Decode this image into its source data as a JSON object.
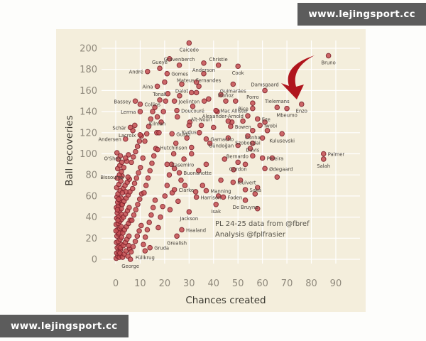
{
  "watermarks": {
    "top": "www.lejingsport.cc",
    "bottom": "www.lejingsport.cc"
  },
  "colors": {
    "panel_bg": "#f4eedc",
    "grid": "#ffffff",
    "point_fill": "#c44d52",
    "point_stroke": "#7e232c",
    "tick_color": "#8f897c",
    "axis_title_color": "#3c3a31",
    "player_label_color": "#433e38",
    "annotation_color": "#57544b",
    "arrow_color": "#b0151d",
    "watermark_bg": "#5c5c5c",
    "watermark_text": "#ffffff"
  },
  "chart_data": {
    "type": "scatter",
    "title": "",
    "xlabel": "Chances created",
    "ylabel": "Ball recoveries",
    "x_ticks": [
      0,
      10,
      20,
      30,
      40,
      50,
      60,
      70,
      80,
      90
    ],
    "y_ticks": [
      0,
      20,
      40,
      60,
      80,
      100,
      120,
      140,
      160,
      180,
      200
    ],
    "xlim": [
      -5,
      97
    ],
    "ylim": [
      -10,
      212
    ],
    "grid": true,
    "legend": false,
    "annotation_lines": [
      "PL 24-25 data from @fbref",
      "Analysis @fplfrasier"
    ],
    "arrow_annotation": {
      "points_at": "Enzo",
      "shape": "curved-swoosh-down"
    },
    "labeled_points": [
      {
        "name": "Caicedo",
        "x": 30,
        "y": 205,
        "side": "below"
      },
      {
        "name": "Bruno",
        "x": 87,
        "y": 193,
        "side": "below"
      },
      {
        "name": "Gravenberch",
        "x": 26,
        "y": 184,
        "side": "above"
      },
      {
        "name": "Christie",
        "x": 42,
        "y": 184,
        "side": "above"
      },
      {
        "name": "Gueye",
        "x": 18,
        "y": 181,
        "side": "above"
      },
      {
        "name": "Anderson",
        "x": 36,
        "y": 186,
        "side": "below"
      },
      {
        "name": "Cook",
        "x": 50,
        "y": 183,
        "side": "below"
      },
      {
        "name": "André",
        "x": 13,
        "y": 178,
        "side": "left"
      },
      {
        "name": "Gomes",
        "x": 21,
        "y": 176,
        "side": "right"
      },
      {
        "name": "Mateus Fernandes",
        "x": 34,
        "y": 164,
        "side": "above"
      },
      {
        "name": "Aina",
        "x": 17,
        "y": 164,
        "side": "left"
      },
      {
        "name": "Dalot",
        "x": 27,
        "y": 166,
        "side": "below"
      },
      {
        "name": "Guimarães",
        "x": 48,
        "y": 166,
        "side": "below"
      },
      {
        "name": "Tonali",
        "x": 18,
        "y": 151,
        "side": "above"
      },
      {
        "name": "Bassey",
        "x": 8,
        "y": 150,
        "side": "left"
      },
      {
        "name": "Collins",
        "x": 10,
        "y": 147,
        "side": "right"
      },
      {
        "name": "Muñoz",
        "x": 45,
        "y": 150,
        "side": "above"
      },
      {
        "name": "Joelinton",
        "x": 24,
        "y": 150,
        "side": "right"
      },
      {
        "name": "Porro",
        "x": 56,
        "y": 148,
        "side": "above"
      },
      {
        "name": "Damsgaard",
        "x": 61,
        "y": 160,
        "side": "above"
      },
      {
        "name": "Rice",
        "x": 56,
        "y": 143,
        "side": "left"
      },
      {
        "name": "Tielemans",
        "x": 66,
        "y": 144,
        "side": "above"
      },
      {
        "name": "Enzo",
        "x": 76,
        "y": 147,
        "side": "below"
      },
      {
        "name": "Lerma",
        "x": 10,
        "y": 140,
        "side": "left"
      },
      {
        "name": "Doucouré",
        "x": 25,
        "y": 141,
        "side": "right"
      },
      {
        "name": "Mac Allister",
        "x": 41,
        "y": 141,
        "side": "right"
      },
      {
        "name": "Alexander-Arnold",
        "x": 54,
        "y": 136,
        "side": "left"
      },
      {
        "name": "Eze",
        "x": 58,
        "y": 133,
        "side": "right"
      },
      {
        "name": "Mbeumo",
        "x": 70,
        "y": 143,
        "side": "below"
      },
      {
        "name": "Kilman",
        "x": 17,
        "y": 135,
        "side": "below"
      },
      {
        "name": "Aït-Nouri",
        "x": 35,
        "y": 127,
        "side": "above"
      },
      {
        "name": "Bowen",
        "x": 47,
        "y": 126,
        "side": "right"
      },
      {
        "name": "Schär",
        "x": 6,
        "y": 125,
        "side": "left"
      },
      {
        "name": "Kudus",
        "x": 30,
        "y": 127,
        "side": "below"
      },
      {
        "name": "Iwobi",
        "x": 59,
        "y": 127,
        "side": "right"
      },
      {
        "name": "Lacroix",
        "x": 10,
        "y": 118,
        "side": "left"
      },
      {
        "name": "Gusto",
        "x": 23,
        "y": 119,
        "side": "right"
      },
      {
        "name": "Garnacho",
        "x": 37,
        "y": 114,
        "side": "right"
      },
      {
        "name": "Andersen",
        "x": 4,
        "y": 114,
        "side": "left"
      },
      {
        "name": "Cunha",
        "x": 56,
        "y": 122,
        "side": "below"
      },
      {
        "name": "Szoboszlai",
        "x": 54,
        "y": 117,
        "side": "below"
      },
      {
        "name": "Kulusevski",
        "x": 68,
        "y": 119,
        "side": "below"
      },
      {
        "name": "Hutchinson",
        "x": 31,
        "y": 106,
        "side": "left"
      },
      {
        "name": "Gündoğan",
        "x": 50,
        "y": 108,
        "side": "left"
      },
      {
        "name": "Davis",
        "x": 56,
        "y": 110,
        "side": "below"
      },
      {
        "name": "Bernardo",
        "x": 56,
        "y": 98,
        "side": "left"
      },
      {
        "name": "Pereira",
        "x": 60,
        "y": 96,
        "side": "right"
      },
      {
        "name": "O'Shea",
        "x": 4,
        "y": 96,
        "side": "left"
      },
      {
        "name": "Casemiro",
        "x": 21,
        "y": 90,
        "side": "right"
      },
      {
        "name": "Buonanotte",
        "x": 26,
        "y": 82,
        "side": "right"
      },
      {
        "name": "Bissouma",
        "x": 5,
        "y": 78,
        "side": "left"
      },
      {
        "name": "Gordon",
        "x": 50,
        "y": 92,
        "side": "below"
      },
      {
        "name": "Ødegaard",
        "x": 61,
        "y": 86,
        "side": "right"
      },
      {
        "name": "Palmer",
        "x": 85,
        "y": 100,
        "side": "right"
      },
      {
        "name": "Salah",
        "x": 85,
        "y": 95,
        "side": "below"
      },
      {
        "name": "Kluivert",
        "x": 48,
        "y": 73,
        "side": "right"
      },
      {
        "name": "Saka",
        "x": 53,
        "y": 66,
        "side": "right"
      },
      {
        "name": "Clarke",
        "x": 24,
        "y": 66,
        "side": "right"
      },
      {
        "name": "Manning",
        "x": 37,
        "y": 65,
        "side": "right"
      },
      {
        "name": "Harrison",
        "x": 33,
        "y": 59,
        "side": "right"
      },
      {
        "name": "Foden",
        "x": 44,
        "y": 59,
        "side": "right"
      },
      {
        "name": "Isak",
        "x": 41,
        "y": 52,
        "side": "below"
      },
      {
        "name": "De Bruyne",
        "x": 53,
        "y": 56,
        "side": "below"
      },
      {
        "name": "Jackson",
        "x": 30,
        "y": 45,
        "side": "below"
      },
      {
        "name": "Haaland",
        "x": 27,
        "y": 28,
        "side": "right"
      },
      {
        "name": "Grealish",
        "x": 25,
        "y": 22,
        "side": "below"
      },
      {
        "name": "Gruda",
        "x": 14,
        "y": 11,
        "side": "right"
      },
      {
        "name": "Füllkrug",
        "x": 12,
        "y": 8,
        "side": "below"
      },
      {
        "name": "George",
        "x": 6,
        "y": 0,
        "side": "below"
      }
    ],
    "background_points": [
      [
        0.2,
        1
      ],
      [
        0.8,
        3
      ],
      [
        1.5,
        2
      ],
      [
        2.2,
        4
      ],
      [
        0.4,
        6
      ],
      [
        1.1,
        7
      ],
      [
        1.9,
        9
      ],
      [
        0.6,
        11
      ],
      [
        1.4,
        12
      ],
      [
        2.3,
        14
      ],
      [
        0.3,
        16
      ],
      [
        1.0,
        17
      ],
      [
        1.8,
        19
      ],
      [
        2.4,
        21
      ],
      [
        0.5,
        22
      ],
      [
        1.2,
        24
      ],
      [
        2.0,
        26
      ],
      [
        0.7,
        28
      ],
      [
        1.6,
        29
      ],
      [
        2.2,
        31
      ],
      [
        0.2,
        33
      ],
      [
        1.0,
        34
      ],
      [
        1.7,
        36
      ],
      [
        2.4,
        38
      ],
      [
        0.4,
        39
      ],
      [
        1.3,
        41
      ],
      [
        2.1,
        43
      ],
      [
        0.6,
        44
      ],
      [
        1.5,
        46
      ],
      [
        2.3,
        48
      ],
      [
        0.3,
        49
      ],
      [
        1.1,
        51
      ],
      [
        1.9,
        53
      ],
      [
        0.8,
        54
      ],
      [
        1.6,
        56
      ],
      [
        2.2,
        58
      ],
      [
        0.5,
        59
      ],
      [
        1.3,
        25
      ],
      [
        0.9,
        37
      ],
      [
        2.0,
        11
      ],
      [
        0.1,
        27
      ],
      [
        1.7,
        6
      ],
      [
        2.4,
        52
      ],
      [
        0.7,
        47
      ],
      [
        1.2,
        57
      ],
      [
        2.8,
        2
      ],
      [
        3.5,
        5
      ],
      [
        4.2,
        8
      ],
      [
        5.0,
        3
      ],
      [
        5.7,
        10
      ],
      [
        3.1,
        13
      ],
      [
        3.9,
        16
      ],
      [
        4.6,
        19
      ],
      [
        5.4,
        22
      ],
      [
        2.9,
        25
      ],
      [
        3.6,
        28
      ],
      [
        4.4,
        31
      ],
      [
        5.2,
        34
      ],
      [
        5.9,
        37
      ],
      [
        3.2,
        40
      ],
      [
        4.0,
        43
      ],
      [
        4.8,
        46
      ],
      [
        5.5,
        49
      ],
      [
        2.7,
        52
      ],
      [
        3.4,
        55
      ],
      [
        4.3,
        58
      ],
      [
        5.1,
        61
      ],
      [
        5.8,
        64
      ],
      [
        3.0,
        67
      ],
      [
        3.8,
        70
      ],
      [
        4.7,
        73
      ],
      [
        5.6,
        76
      ],
      [
        2.6,
        79
      ],
      [
        4.1,
        64
      ],
      [
        5.3,
        13
      ],
      [
        0.9,
        62
      ],
      [
        1.8,
        65
      ],
      [
        0.4,
        68
      ],
      [
        1.3,
        71
      ],
      [
        2.1,
        74
      ],
      [
        0.6,
        77
      ],
      [
        1.5,
        80
      ],
      [
        2.3,
        83
      ],
      [
        0.8,
        86
      ],
      [
        1.7,
        89
      ],
      [
        2.5,
        92
      ],
      [
        1.0,
        95
      ],
      [
        1.9,
        98
      ],
      [
        0.5,
        101
      ],
      [
        2.7,
        63
      ],
      [
        3.3,
        87
      ],
      [
        4.5,
        93
      ],
      [
        5.2,
        99
      ],
      [
        6.3,
        7
      ],
      [
        7.1,
        12
      ],
      [
        8.0,
        17
      ],
      [
        8.8,
        22
      ],
      [
        9.6,
        27
      ],
      [
        10.4,
        32
      ],
      [
        6.6,
        37
      ],
      [
        7.4,
        42
      ],
      [
        8.2,
        47
      ],
      [
        9.0,
        52
      ],
      [
        9.8,
        57
      ],
      [
        10.6,
        62
      ],
      [
        6.9,
        67
      ],
      [
        7.7,
        72
      ],
      [
        8.5,
        77
      ],
      [
        9.3,
        82
      ],
      [
        10.1,
        87
      ],
      [
        6.4,
        92
      ],
      [
        7.2,
        97
      ],
      [
        8.1,
        102
      ],
      [
        8.9,
        107
      ],
      [
        9.7,
        112
      ],
      [
        10.5,
        117
      ],
      [
        7.0,
        122
      ],
      [
        7.8,
        127
      ],
      [
        11.3,
        14
      ],
      [
        12.1,
        21
      ],
      [
        12.9,
        28
      ],
      [
        13.7,
        35
      ],
      [
        14.5,
        42
      ],
      [
        15.3,
        49
      ],
      [
        16.1,
        56
      ],
      [
        11.6,
        63
      ],
      [
        12.4,
        70
      ],
      [
        13.2,
        77
      ],
      [
        14.0,
        84
      ],
      [
        14.8,
        91
      ],
      [
        15.6,
        98
      ],
      [
        16.4,
        105
      ],
      [
        11.9,
        112
      ],
      [
        12.7,
        119
      ],
      [
        13.5,
        126
      ],
      [
        14.3,
        133
      ],
      [
        15.1,
        140
      ],
      [
        16.0,
        144
      ],
      [
        16.8,
        120
      ],
      [
        11.1,
        96
      ],
      [
        17.4,
        30
      ],
      [
        18.3,
        40
      ],
      [
        19.2,
        50
      ],
      [
        20.1,
        60
      ],
      [
        21.0,
        70
      ],
      [
        21.9,
        80
      ],
      [
        22.8,
        90
      ],
      [
        23.7,
        100
      ],
      [
        24.6,
        110
      ],
      [
        17.7,
        120
      ],
      [
        18.6,
        130
      ],
      [
        19.5,
        140
      ],
      [
        20.4,
        150
      ],
      [
        21.3,
        157
      ],
      [
        22.2,
        47
      ],
      [
        23.1,
        63
      ],
      [
        24.0,
        86
      ],
      [
        17.1,
        104
      ],
      [
        25.5,
        55
      ],
      [
        26.7,
        75
      ],
      [
        27.9,
        95
      ],
      [
        29.1,
        115
      ],
      [
        30.3,
        130
      ],
      [
        31.5,
        145
      ],
      [
        32.7,
        64
      ],
      [
        33.9,
        84
      ],
      [
        25.2,
        135
      ],
      [
        28.3,
        70
      ],
      [
        31.0,
        100
      ],
      [
        34.2,
        120
      ],
      [
        26.1,
        155
      ],
      [
        33.0,
        158
      ],
      [
        35.5,
        70
      ],
      [
        37.0,
        90
      ],
      [
        38.5,
        110
      ],
      [
        40.0,
        125
      ],
      [
        41.5,
        140
      ],
      [
        43.0,
        75
      ],
      [
        44.5,
        95
      ],
      [
        46.0,
        115
      ],
      [
        47.5,
        130
      ],
      [
        49.0,
        150
      ],
      [
        36.2,
        150
      ],
      [
        42.0,
        60
      ],
      [
        48.2,
        85
      ],
      [
        51,
        75
      ],
      [
        53,
        90
      ],
      [
        55,
        105
      ],
      [
        58,
        68
      ],
      [
        60,
        115
      ],
      [
        61,
        130
      ],
      [
        22,
        190
      ],
      [
        20,
        168
      ],
      [
        33,
        168
      ],
      [
        36,
        176
      ],
      [
        31,
        158
      ],
      [
        43,
        156
      ],
      [
        38,
        152
      ],
      [
        52,
        131
      ],
      [
        46,
        131
      ],
      [
        62,
        122
      ],
      [
        64,
        96
      ],
      [
        66,
        78
      ],
      [
        57,
        62
      ],
      [
        58,
        48
      ]
    ]
  }
}
